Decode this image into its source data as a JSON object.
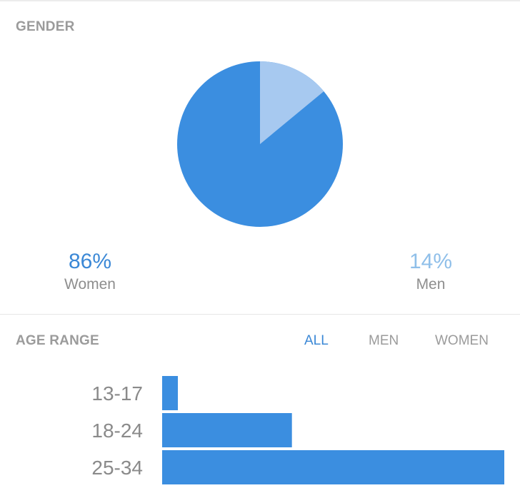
{
  "gender": {
    "title": "GENDER",
    "women": {
      "pct": "86%",
      "label": "Women",
      "color": "#3b8ee0"
    },
    "men": {
      "pct": "14%",
      "label": "Men",
      "color": "#a7c9f0"
    }
  },
  "age": {
    "title": "AGE RANGE",
    "tabs": [
      {
        "label": "ALL",
        "active": true
      },
      {
        "label": "MEN",
        "active": false
      },
      {
        "label": "WOMEN",
        "active": false
      }
    ]
  },
  "colors": {
    "accent": "#3b88d6",
    "bar": "#3b8ee0",
    "muted_text": "#9b9b9b"
  },
  "chart_data": [
    {
      "type": "pie",
      "title": "GENDER",
      "slices": [
        {
          "name": "Women",
          "value": 86,
          "color": "#3b8ee0"
        },
        {
          "name": "Men",
          "value": 14,
          "color": "#a7c9f0"
        }
      ]
    },
    {
      "type": "bar",
      "orientation": "horizontal",
      "title": "AGE RANGE",
      "categories": [
        "13-17",
        "18-24",
        "25-34"
      ],
      "values": [
        4,
        33,
        87
      ],
      "xlim": [
        0,
        87
      ],
      "color": "#3b8ee0"
    }
  ]
}
